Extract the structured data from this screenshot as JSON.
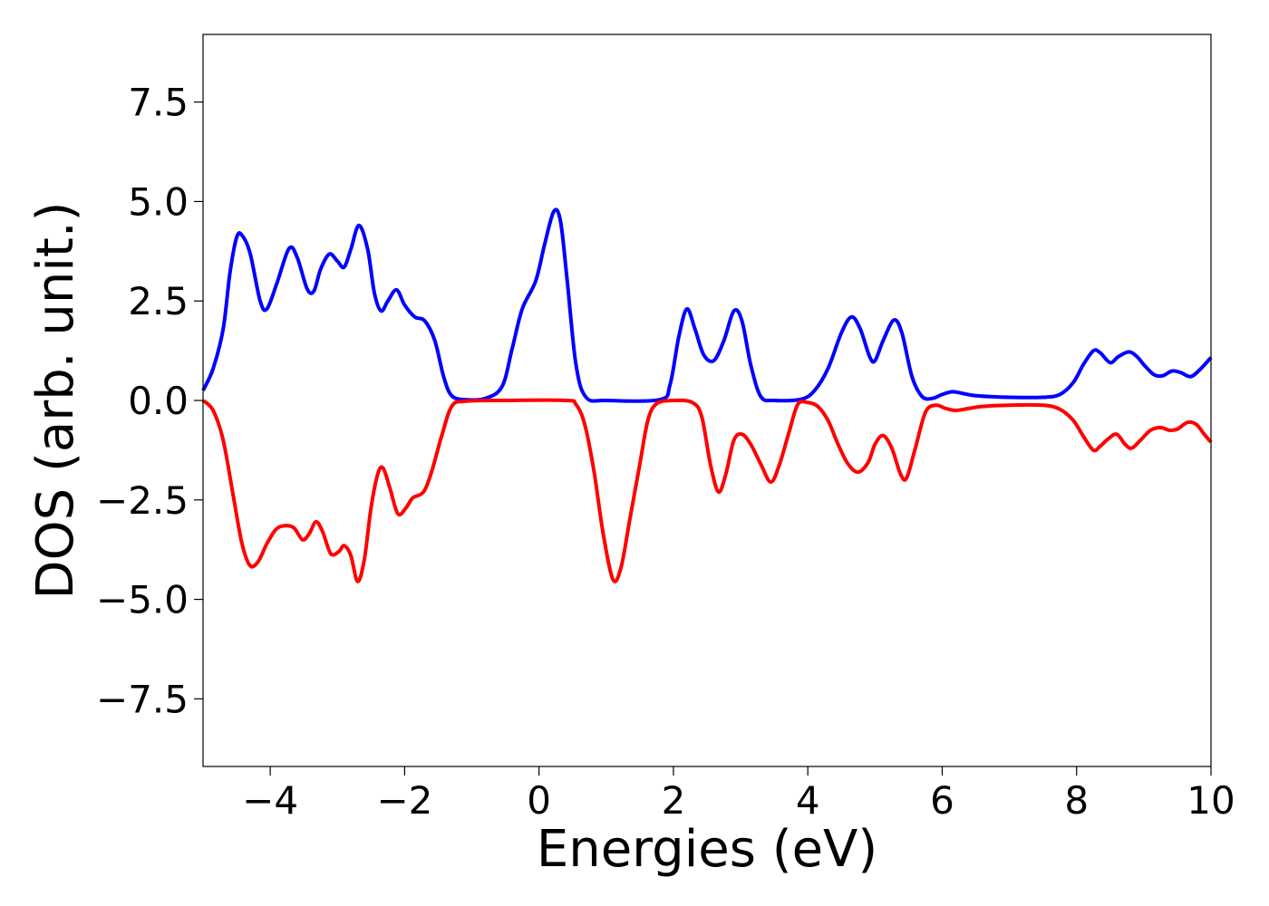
{
  "chart_data": {
    "type": "line",
    "title": "",
    "xlabel": "Energies (eV)",
    "ylabel": "DOS (arb. unit.)",
    "xlim": [
      -5,
      10
    ],
    "ylim": [
      -9.2,
      9.2
    ],
    "xticks": [
      -4,
      -2,
      0,
      2,
      4,
      6,
      8,
      10
    ],
    "xtick_labels": [
      "−4",
      "−2",
      "0",
      "2",
      "4",
      "6",
      "8",
      "10"
    ],
    "yticks": [
      -7.5,
      -5.0,
      -2.5,
      0.0,
      2.5,
      5.0,
      7.5
    ],
    "ytick_labels": [
      "−7.5",
      "−5.0",
      "−2.5",
      "0.0",
      "2.5",
      "5.0",
      "7.5"
    ],
    "grid": false,
    "series": [
      {
        "color": "#0000ff",
        "points": [
          [
            -5.0,
            0.25
          ],
          [
            -4.85,
            0.8
          ],
          [
            -4.7,
            1.8
          ],
          [
            -4.6,
            3.2
          ],
          [
            -4.5,
            4.1
          ],
          [
            -4.42,
            4.15
          ],
          [
            -4.3,
            3.7
          ],
          [
            -4.15,
            2.5
          ],
          [
            -4.05,
            2.3
          ],
          [
            -3.9,
            2.95
          ],
          [
            -3.72,
            3.82
          ],
          [
            -3.6,
            3.6
          ],
          [
            -3.45,
            2.8
          ],
          [
            -3.35,
            2.75
          ],
          [
            -3.25,
            3.3
          ],
          [
            -3.12,
            3.68
          ],
          [
            -3.0,
            3.5
          ],
          [
            -2.9,
            3.35
          ],
          [
            -2.8,
            3.8
          ],
          [
            -2.68,
            4.4
          ],
          [
            -2.55,
            3.8
          ],
          [
            -2.45,
            2.7
          ],
          [
            -2.35,
            2.25
          ],
          [
            -2.25,
            2.5
          ],
          [
            -2.12,
            2.78
          ],
          [
            -2.0,
            2.4
          ],
          [
            -1.85,
            2.1
          ],
          [
            -1.7,
            2.0
          ],
          [
            -1.55,
            1.5
          ],
          [
            -1.42,
            0.6
          ],
          [
            -1.3,
            0.12
          ],
          [
            -1.1,
            0.02
          ],
          [
            -0.8,
            0.05
          ],
          [
            -0.55,
            0.35
          ],
          [
            -0.4,
            1.3
          ],
          [
            -0.25,
            2.3
          ],
          [
            -0.05,
            3.0
          ],
          [
            0.08,
            3.9
          ],
          [
            0.22,
            4.75
          ],
          [
            0.32,
            4.5
          ],
          [
            0.42,
            3.0
          ],
          [
            0.55,
            0.9
          ],
          [
            0.7,
            0.08
          ],
          [
            1.0,
            0.0
          ],
          [
            1.8,
            0.02
          ],
          [
            1.95,
            0.4
          ],
          [
            2.08,
            1.6
          ],
          [
            2.2,
            2.3
          ],
          [
            2.32,
            1.8
          ],
          [
            2.45,
            1.15
          ],
          [
            2.6,
            1.0
          ],
          [
            2.75,
            1.5
          ],
          [
            2.9,
            2.25
          ],
          [
            3.02,
            2.0
          ],
          [
            3.15,
            0.9
          ],
          [
            3.3,
            0.1
          ],
          [
            3.5,
            0.0
          ],
          [
            3.9,
            0.03
          ],
          [
            4.1,
            0.25
          ],
          [
            4.3,
            0.8
          ],
          [
            4.5,
            1.7
          ],
          [
            4.65,
            2.1
          ],
          [
            4.78,
            1.8
          ],
          [
            4.92,
            1.1
          ],
          [
            5.0,
            1.0
          ],
          [
            5.12,
            1.5
          ],
          [
            5.28,
            2.02
          ],
          [
            5.4,
            1.7
          ],
          [
            5.55,
            0.6
          ],
          [
            5.7,
            0.1
          ],
          [
            5.85,
            0.05
          ],
          [
            6.0,
            0.15
          ],
          [
            6.15,
            0.22
          ],
          [
            6.3,
            0.18
          ],
          [
            6.5,
            0.12
          ],
          [
            7.0,
            0.08
          ],
          [
            7.5,
            0.08
          ],
          [
            7.75,
            0.15
          ],
          [
            7.95,
            0.45
          ],
          [
            8.1,
            0.9
          ],
          [
            8.25,
            1.25
          ],
          [
            8.35,
            1.2
          ],
          [
            8.5,
            0.95
          ],
          [
            8.62,
            1.1
          ],
          [
            8.78,
            1.22
          ],
          [
            8.9,
            1.1
          ],
          [
            9.0,
            0.9
          ],
          [
            9.15,
            0.65
          ],
          [
            9.28,
            0.62
          ],
          [
            9.42,
            0.74
          ],
          [
            9.55,
            0.7
          ],
          [
            9.7,
            0.6
          ],
          [
            9.85,
            0.8
          ],
          [
            10.0,
            1.08
          ]
        ]
      },
      {
        "color": "#ff0000",
        "points": [
          [
            -5.0,
            0.0
          ],
          [
            -4.85,
            -0.25
          ],
          [
            -4.7,
            -1.0
          ],
          [
            -4.55,
            -2.4
          ],
          [
            -4.42,
            -3.6
          ],
          [
            -4.3,
            -4.15
          ],
          [
            -4.18,
            -4.05
          ],
          [
            -4.05,
            -3.6
          ],
          [
            -3.92,
            -3.25
          ],
          [
            -3.8,
            -3.15
          ],
          [
            -3.65,
            -3.2
          ],
          [
            -3.52,
            -3.5
          ],
          [
            -3.42,
            -3.35
          ],
          [
            -3.32,
            -3.05
          ],
          [
            -3.22,
            -3.3
          ],
          [
            -3.1,
            -3.85
          ],
          [
            -2.98,
            -3.8
          ],
          [
            -2.9,
            -3.65
          ],
          [
            -2.8,
            -3.9
          ],
          [
            -2.7,
            -4.55
          ],
          [
            -2.6,
            -4.0
          ],
          [
            -2.5,
            -2.7
          ],
          [
            -2.4,
            -1.85
          ],
          [
            -2.32,
            -1.7
          ],
          [
            -2.22,
            -2.2
          ],
          [
            -2.1,
            -2.85
          ],
          [
            -1.98,
            -2.7
          ],
          [
            -1.88,
            -2.45
          ],
          [
            -1.72,
            -2.3
          ],
          [
            -1.6,
            -1.8
          ],
          [
            -1.45,
            -0.9
          ],
          [
            -1.3,
            -0.15
          ],
          [
            -1.1,
            -0.02
          ],
          [
            -0.5,
            0.0
          ],
          [
            0.4,
            0.0
          ],
          [
            0.55,
            -0.1
          ],
          [
            0.68,
            -0.6
          ],
          [
            0.82,
            -1.8
          ],
          [
            0.95,
            -3.3
          ],
          [
            1.1,
            -4.5
          ],
          [
            1.22,
            -4.2
          ],
          [
            1.35,
            -3.0
          ],
          [
            1.5,
            -1.6
          ],
          [
            1.62,
            -0.5
          ],
          [
            1.75,
            -0.08
          ],
          [
            2.0,
            0.0
          ],
          [
            2.28,
            -0.05
          ],
          [
            2.42,
            -0.4
          ],
          [
            2.55,
            -1.6
          ],
          [
            2.67,
            -2.3
          ],
          [
            2.78,
            -1.85
          ],
          [
            2.9,
            -1.0
          ],
          [
            3.02,
            -0.85
          ],
          [
            3.15,
            -1.1
          ],
          [
            3.3,
            -1.6
          ],
          [
            3.45,
            -2.05
          ],
          [
            3.58,
            -1.6
          ],
          [
            3.72,
            -0.8
          ],
          [
            3.85,
            -0.1
          ],
          [
            4.0,
            -0.05
          ],
          [
            4.15,
            -0.15
          ],
          [
            4.3,
            -0.5
          ],
          [
            4.45,
            -1.1
          ],
          [
            4.6,
            -1.6
          ],
          [
            4.75,
            -1.8
          ],
          [
            4.9,
            -1.55
          ],
          [
            5.0,
            -1.1
          ],
          [
            5.12,
            -0.88
          ],
          [
            5.25,
            -1.2
          ],
          [
            5.38,
            -1.85
          ],
          [
            5.47,
            -1.95
          ],
          [
            5.6,
            -1.2
          ],
          [
            5.75,
            -0.3
          ],
          [
            5.9,
            -0.12
          ],
          [
            6.05,
            -0.2
          ],
          [
            6.2,
            -0.25
          ],
          [
            6.4,
            -0.2
          ],
          [
            6.6,
            -0.15
          ],
          [
            7.0,
            -0.12
          ],
          [
            7.5,
            -0.12
          ],
          [
            7.75,
            -0.22
          ],
          [
            7.95,
            -0.5
          ],
          [
            8.1,
            -0.9
          ],
          [
            8.25,
            -1.25
          ],
          [
            8.35,
            -1.15
          ],
          [
            8.48,
            -0.95
          ],
          [
            8.6,
            -0.85
          ],
          [
            8.72,
            -1.1
          ],
          [
            8.82,
            -1.2
          ],
          [
            8.95,
            -1.0
          ],
          [
            9.1,
            -0.75
          ],
          [
            9.25,
            -0.68
          ],
          [
            9.38,
            -0.75
          ],
          [
            9.5,
            -0.72
          ],
          [
            9.65,
            -0.55
          ],
          [
            9.78,
            -0.6
          ],
          [
            9.9,
            -0.85
          ],
          [
            10.0,
            -1.05
          ]
        ]
      }
    ]
  }
}
